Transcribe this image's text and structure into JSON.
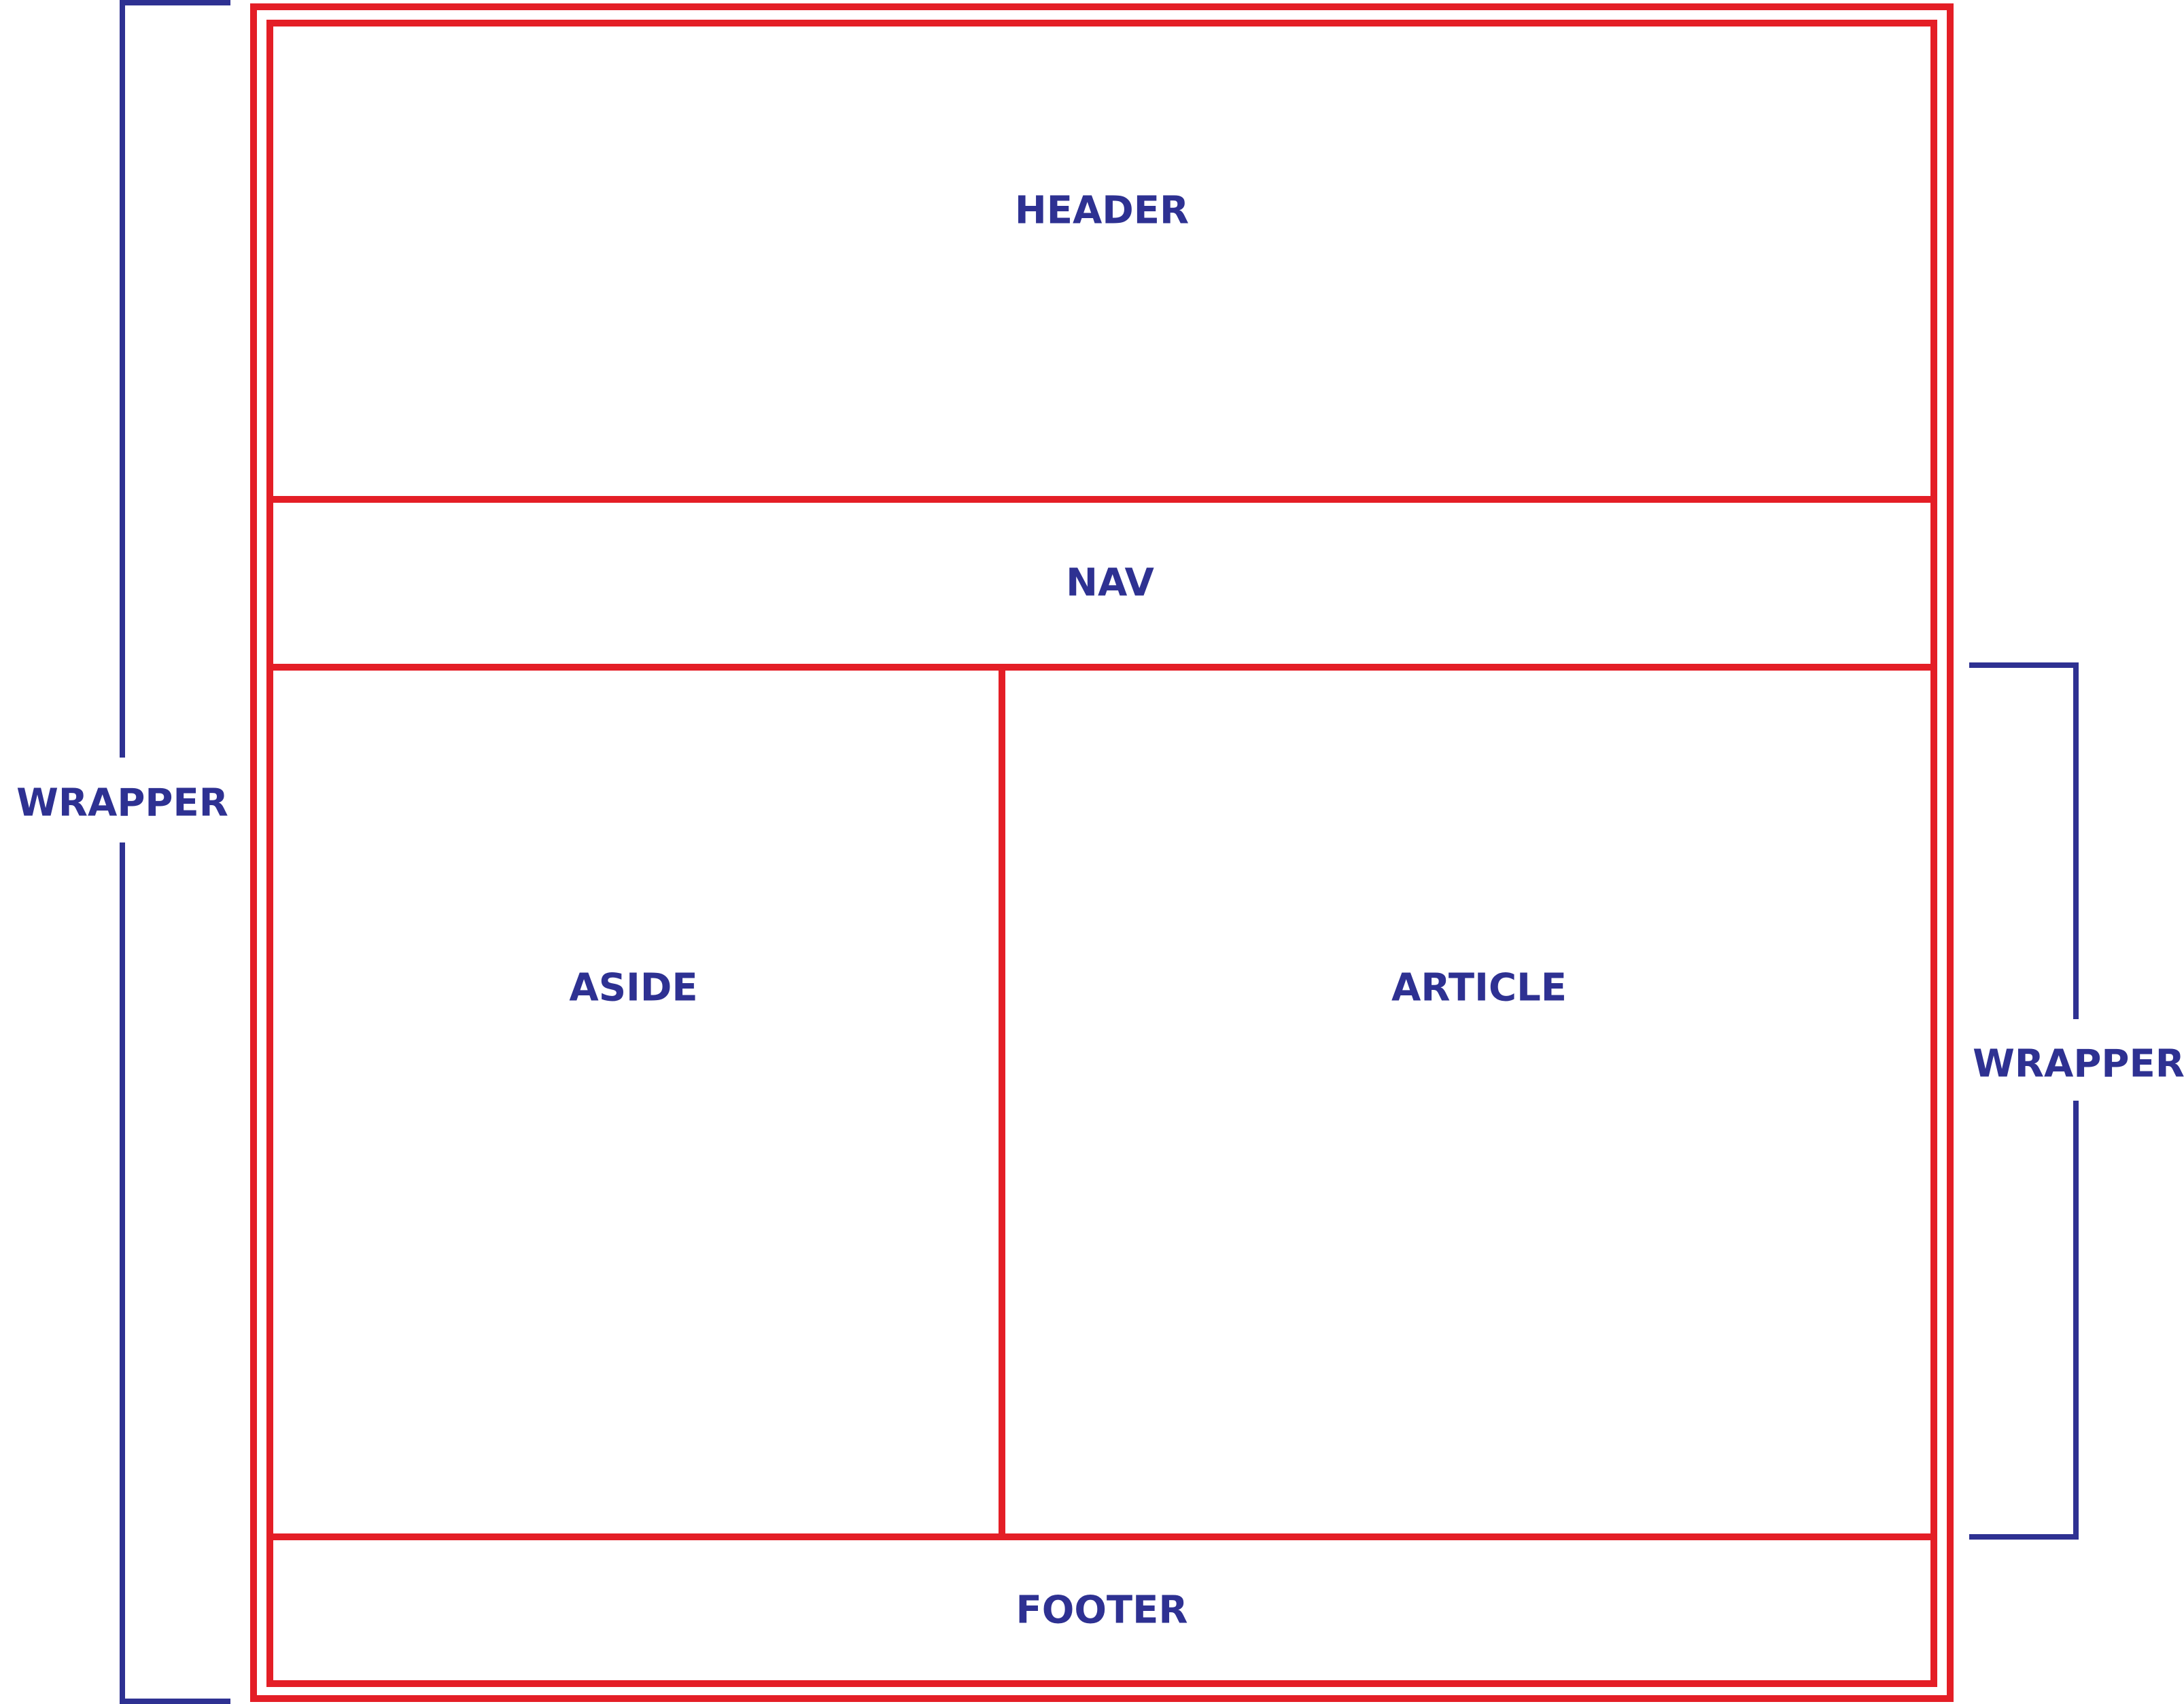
{
  "diagram": {
    "type": "page-layout",
    "regions": {
      "header": "HEADER",
      "nav": "NAV",
      "aside": "ASIDE",
      "article": "ARTICLE",
      "footer": "FOOTER"
    },
    "brackets": {
      "outer_wrapper": "WRAPPER",
      "content_wrapper": "WRAPPER"
    },
    "colors": {
      "box_stroke": "#e41e26",
      "text_and_brackets": "#2e3192",
      "background": "#ffffff"
    }
  }
}
